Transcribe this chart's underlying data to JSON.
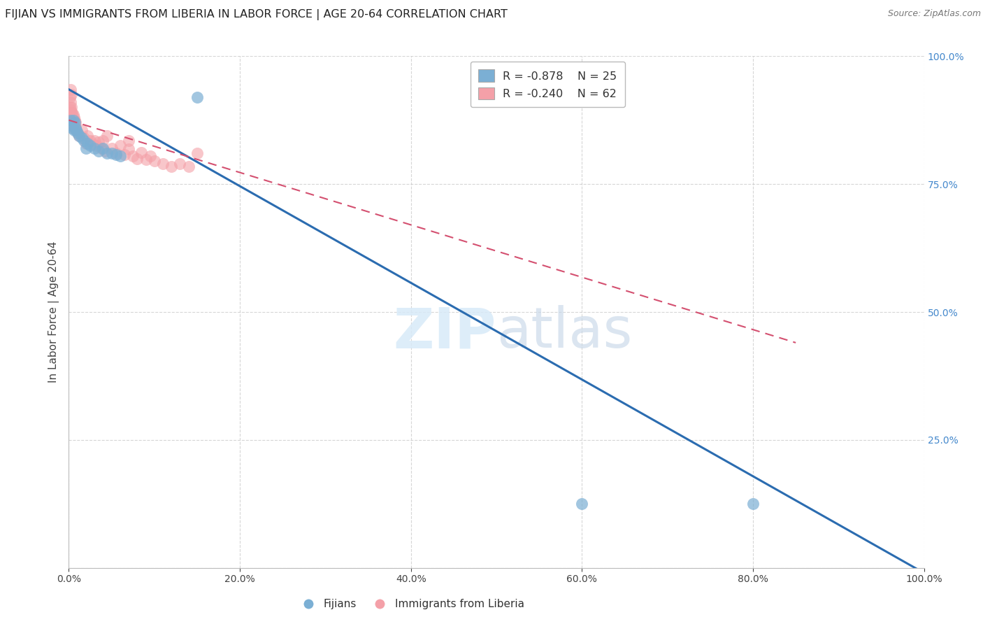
{
  "title": "FIJIAN VS IMMIGRANTS FROM LIBERIA IN LABOR FORCE | AGE 20-64 CORRELATION CHART",
  "source": "Source: ZipAtlas.com",
  "ylabel": "In Labor Force | Age 20-64",
  "xlim": [
    0.0,
    1.0
  ],
  "ylim": [
    0.0,
    1.0
  ],
  "xtick_vals": [
    0.0,
    0.2,
    0.4,
    0.6,
    0.8,
    1.0
  ],
  "ytick_vals": [
    0.0,
    0.25,
    0.5,
    0.75,
    1.0
  ],
  "ytick_vals_right": [
    0.25,
    0.5,
    0.75,
    1.0
  ],
  "ytick_labels_right": [
    "25.0%",
    "50.0%",
    "75.0%",
    "100.0%"
  ],
  "watermark_zip": "ZIP",
  "watermark_atlas": "atlas",
  "legend_blue_r": "-0.878",
  "legend_blue_n": "25",
  "legend_pink_r": "-0.240",
  "legend_pink_n": "62",
  "fijian_color": "#7BAFD4",
  "liberia_color": "#F4A0A8",
  "fijian_edge_color": "#5A9AC5",
  "liberia_edge_color": "#E87080",
  "fijian_line_color": "#2B6CB0",
  "liberia_line_color": "#D45070",
  "background_color": "#FFFFFF",
  "title_color": "#222222",
  "axis_label_color": "#444444",
  "right_axis_color": "#4488CC",
  "grid_color": "#CCCCCC",
  "blue_line_x0": 0.0,
  "blue_line_y0": 0.935,
  "blue_line_x1": 1.0,
  "blue_line_y1": -0.01,
  "pink_line_x0": 0.0,
  "pink_line_y0": 0.875,
  "pink_line_x1": 0.85,
  "pink_line_y1": 0.44,
  "fijian_points": [
    [
      0.002,
      0.875
    ],
    [
      0.003,
      0.865
    ],
    [
      0.004,
      0.86
    ],
    [
      0.005,
      0.875
    ],
    [
      0.006,
      0.855
    ],
    [
      0.007,
      0.87
    ],
    [
      0.008,
      0.86
    ],
    [
      0.009,
      0.855
    ],
    [
      0.01,
      0.85
    ],
    [
      0.012,
      0.845
    ],
    [
      0.015,
      0.84
    ],
    [
      0.018,
      0.835
    ],
    [
      0.02,
      0.82
    ],
    [
      0.022,
      0.83
    ],
    [
      0.025,
      0.825
    ],
    [
      0.03,
      0.82
    ],
    [
      0.035,
      0.815
    ],
    [
      0.04,
      0.82
    ],
    [
      0.045,
      0.81
    ],
    [
      0.05,
      0.81
    ],
    [
      0.055,
      0.808
    ],
    [
      0.06,
      0.805
    ],
    [
      0.15,
      0.92
    ],
    [
      0.6,
      0.125
    ],
    [
      0.8,
      0.125
    ]
  ],
  "liberia_points": [
    [
      0.001,
      0.92
    ],
    [
      0.001,
      0.9
    ],
    [
      0.002,
      0.91
    ],
    [
      0.002,
      0.895
    ],
    [
      0.002,
      0.885
    ],
    [
      0.002,
      0.875
    ],
    [
      0.002,
      0.87
    ],
    [
      0.003,
      0.9
    ],
    [
      0.003,
      0.89
    ],
    [
      0.003,
      0.88
    ],
    [
      0.003,
      0.875
    ],
    [
      0.003,
      0.87
    ],
    [
      0.003,
      0.865
    ],
    [
      0.004,
      0.89
    ],
    [
      0.004,
      0.88
    ],
    [
      0.004,
      0.875
    ],
    [
      0.004,
      0.87
    ],
    [
      0.005,
      0.885
    ],
    [
      0.005,
      0.875
    ],
    [
      0.005,
      0.865
    ],
    [
      0.006,
      0.88
    ],
    [
      0.006,
      0.87
    ],
    [
      0.006,
      0.86
    ],
    [
      0.007,
      0.875
    ],
    [
      0.007,
      0.865
    ],
    [
      0.008,
      0.87
    ],
    [
      0.008,
      0.86
    ],
    [
      0.009,
      0.855
    ],
    [
      0.01,
      0.85
    ],
    [
      0.012,
      0.845
    ],
    [
      0.015,
      0.855
    ],
    [
      0.018,
      0.84
    ],
    [
      0.02,
      0.83
    ],
    [
      0.022,
      0.845
    ],
    [
      0.025,
      0.835
    ],
    [
      0.028,
      0.828
    ],
    [
      0.03,
      0.835
    ],
    [
      0.032,
      0.825
    ],
    [
      0.035,
      0.832
    ],
    [
      0.038,
      0.82
    ],
    [
      0.04,
      0.835
    ],
    [
      0.042,
      0.815
    ],
    [
      0.045,
      0.845
    ],
    [
      0.05,
      0.82
    ],
    [
      0.055,
      0.81
    ],
    [
      0.06,
      0.825
    ],
    [
      0.065,
      0.808
    ],
    [
      0.07,
      0.818
    ],
    [
      0.075,
      0.805
    ],
    [
      0.08,
      0.8
    ],
    [
      0.085,
      0.812
    ],
    [
      0.09,
      0.798
    ],
    [
      0.095,
      0.805
    ],
    [
      0.1,
      0.795
    ],
    [
      0.11,
      0.79
    ],
    [
      0.12,
      0.785
    ],
    [
      0.13,
      0.79
    ],
    [
      0.14,
      0.785
    ],
    [
      0.15,
      0.81
    ],
    [
      0.002,
      0.935
    ],
    [
      0.003,
      0.925
    ],
    [
      0.07,
      0.835
    ]
  ]
}
